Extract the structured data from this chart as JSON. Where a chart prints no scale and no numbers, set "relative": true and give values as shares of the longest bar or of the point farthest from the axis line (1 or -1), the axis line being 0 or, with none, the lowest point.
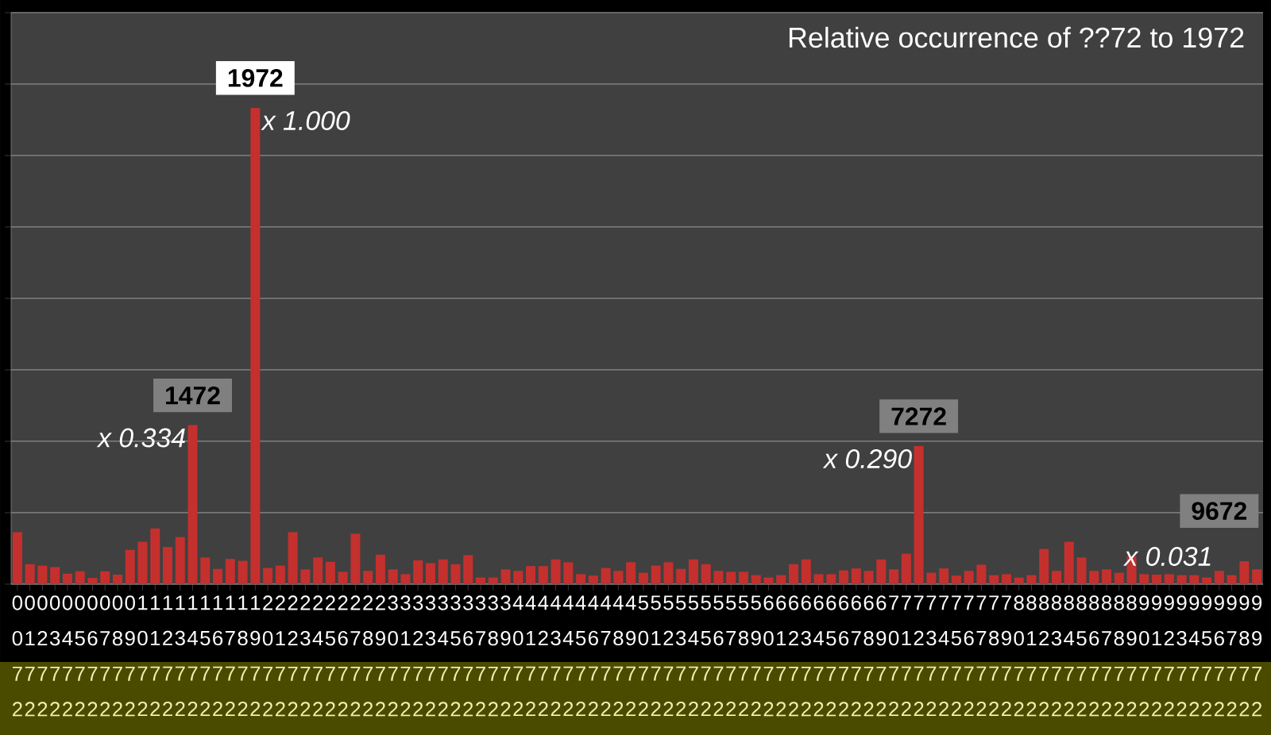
{
  "chart_data": {
    "type": "bar",
    "title": "Relative occurrence of ??72 to 1972",
    "relative": true,
    "grid": true,
    "color": "#c4302e",
    "categories": [
      "0072",
      "0172",
      "0272",
      "0372",
      "0472",
      "0572",
      "0672",
      "0772",
      "0872",
      "0972",
      "1072",
      "1172",
      "1272",
      "1372",
      "1472",
      "1572",
      "1672",
      "1772",
      "1872",
      "1972",
      "2072",
      "2172",
      "2272",
      "2372",
      "2472",
      "2572",
      "2672",
      "2772",
      "2872",
      "2972",
      "3072",
      "3172",
      "3272",
      "3372",
      "3472",
      "3572",
      "3672",
      "3772",
      "3872",
      "3972",
      "4072",
      "4172",
      "4272",
      "4372",
      "4472",
      "4572",
      "4672",
      "4772",
      "4872",
      "4972",
      "5072",
      "5172",
      "5272",
      "5372",
      "5472",
      "5572",
      "5672",
      "5772",
      "5872",
      "5972",
      "6072",
      "6172",
      "6272",
      "6372",
      "6472",
      "6572",
      "6672",
      "6772",
      "6872",
      "6972",
      "7072",
      "7172",
      "7272",
      "7372",
      "7472",
      "7572",
      "7672",
      "7772",
      "7872",
      "7972",
      "8072",
      "8172",
      "8272",
      "8372",
      "8472",
      "8572",
      "8672",
      "8772",
      "8872",
      "8972",
      "9072",
      "9172",
      "9272",
      "9372",
      "9472",
      "9572",
      "9672",
      "9772",
      "9872",
      "9972"
    ],
    "values": [
      0.109,
      0.042,
      0.039,
      0.036,
      0.022,
      0.027,
      0.013,
      0.027,
      0.02,
      0.072,
      0.089,
      0.117,
      0.078,
      0.099,
      0.334,
      0.056,
      0.032,
      0.053,
      0.049,
      1.0,
      0.034,
      0.039,
      0.109,
      0.031,
      0.056,
      0.047,
      0.026,
      0.106,
      0.028,
      0.062,
      0.031,
      0.021,
      0.05,
      0.044,
      0.052,
      0.042,
      0.061,
      0.014,
      0.014,
      0.031,
      0.028,
      0.038,
      0.038,
      0.052,
      0.046,
      0.021,
      0.018,
      0.034,
      0.028,
      0.046,
      0.024,
      0.039,
      0.046,
      0.032,
      0.052,
      0.042,
      0.028,
      0.026,
      0.026,
      0.019,
      0.014,
      0.019,
      0.042,
      0.052,
      0.021,
      0.021,
      0.029,
      0.033,
      0.028,
      0.052,
      0.031,
      0.064,
      0.29,
      0.024,
      0.033,
      0.018,
      0.028,
      0.041,
      0.019,
      0.021,
      0.014,
      0.019,
      0.074,
      0.028,
      0.089,
      0.056,
      0.028,
      0.031,
      0.024,
      0.058,
      0.021,
      0.02,
      0.021,
      0.019,
      0.019,
      0.014,
      0.028,
      0.019,
      0.048,
      0.031
    ],
    "annotations": [
      {
        "text": "x 0.334",
        "x": "1472",
        "y": 0.334
      },
      {
        "text": "x 1.000",
        "x": "1972",
        "y": 1.0
      },
      {
        "text": "x 0.290",
        "x": "7272",
        "y": 0.29
      },
      {
        "text": "x 0.031",
        "x": "9672",
        "y": 0.031
      },
      {
        "text": "1472",
        "x": "1472",
        "y": 0.334
      },
      {
        "text": "1972",
        "x": "1972",
        "y": 1.0
      },
      {
        "text": "7272",
        "x": "7272",
        "y": 0.29
      },
      {
        "text": "9672",
        "x": "9672",
        "y": 0.031
      }
    ]
  }
}
